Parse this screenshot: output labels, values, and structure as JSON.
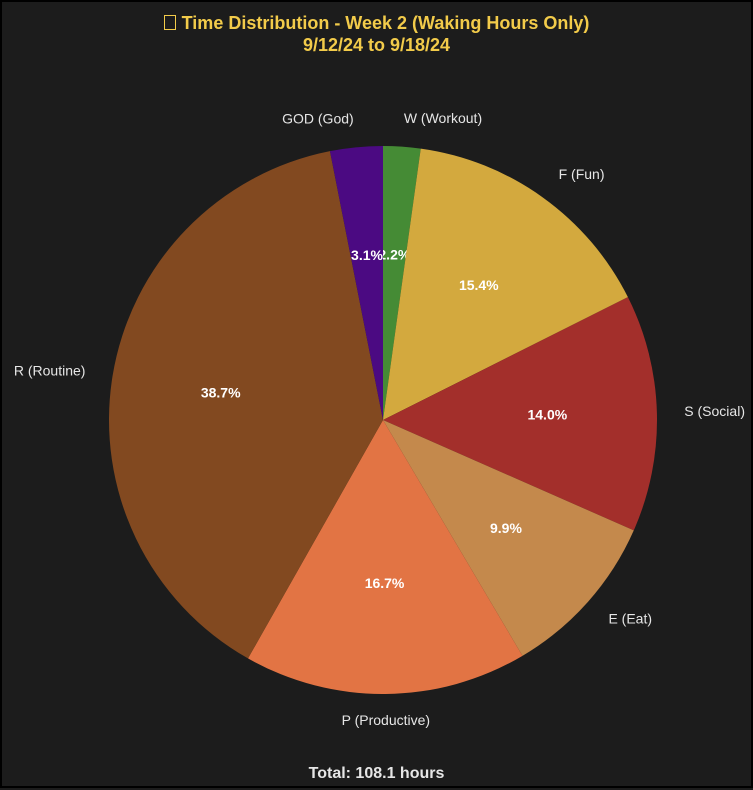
{
  "chart_data": {
    "type": "pie",
    "title": "Time Distribution - Week 2 (Waking Hours Only)",
    "subtitle": "9/12/24 to 9/18/24",
    "footer": "Total: 108.1 hours",
    "slices": [
      {
        "label": "W (Workout)",
        "percent": 2.2,
        "pct_text": "2.2%",
        "color": "#458b35"
      },
      {
        "label": "F (Fun)",
        "percent": 15.4,
        "pct_text": "15.4%",
        "color": "#d3a93e"
      },
      {
        "label": "S (Social)",
        "percent": 14.0,
        "pct_text": "14.0%",
        "color": "#a32f2b"
      },
      {
        "label": "E (Eat)",
        "percent": 9.9,
        "pct_text": "9.9%",
        "color": "#c4894c"
      },
      {
        "label": "P (Productive)",
        "percent": 16.7,
        "pct_text": "16.7%",
        "color": "#e27444"
      },
      {
        "label": "R (Routine)",
        "percent": 38.7,
        "pct_text": "38.7%",
        "color": "#824920"
      },
      {
        "label": "GOD (God)",
        "percent": 3.1,
        "pct_text": "3.1%",
        "color": "#4b0a82"
      }
    ]
  }
}
